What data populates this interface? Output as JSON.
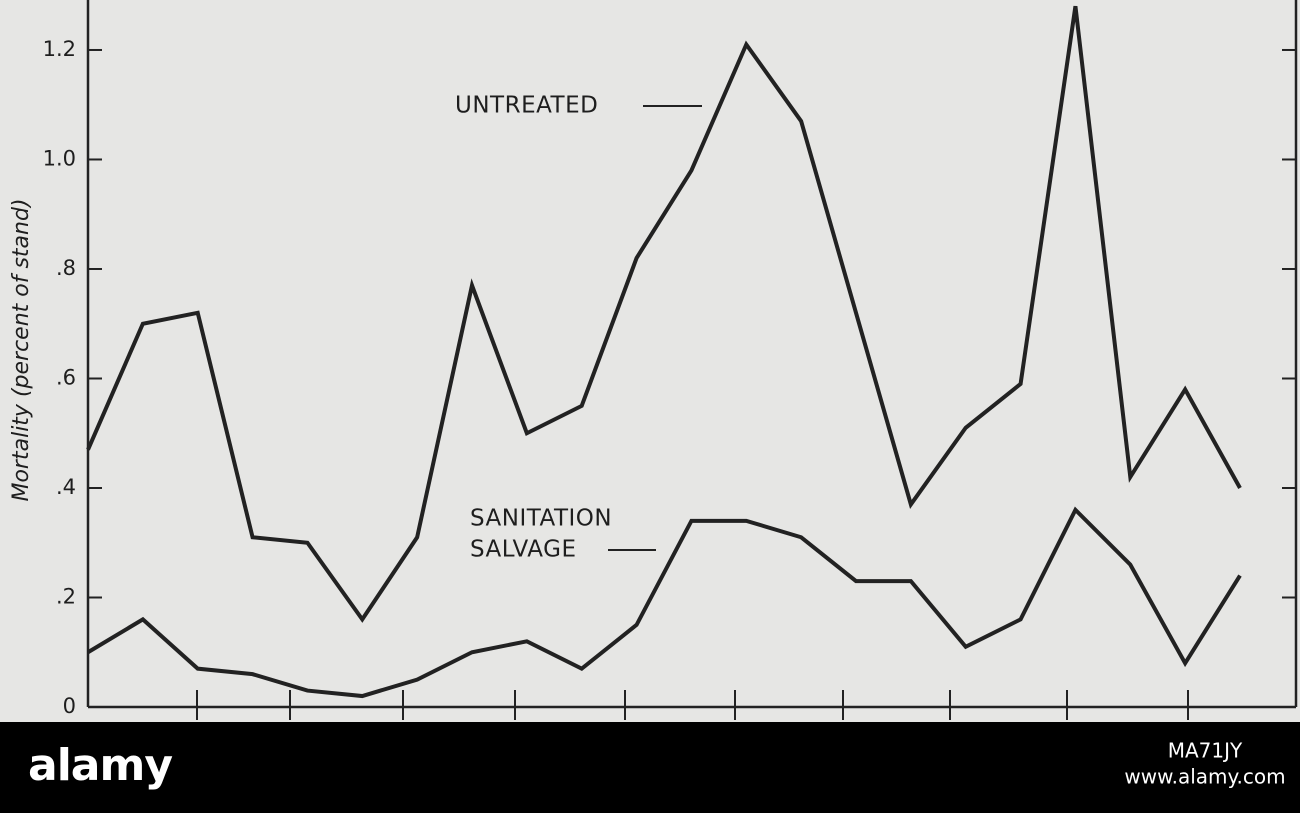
{
  "chart_data": {
    "type": "line",
    "y_label": "Mortality (percent of stand)",
    "annotations": [
      "UNTREATED",
      "SANITATION",
      "SALVAGE"
    ],
    "categories": [
      null,
      null,
      null,
      null,
      null,
      null,
      null,
      null,
      null,
      null,
      null,
      null,
      null,
      null,
      null,
      null,
      null,
      null,
      null,
      null,
      null,
      null
    ],
    "series": [
      {
        "name": "UNTREATED",
        "color": "#222222",
        "values": [
          0.47,
          0.7,
          0.72,
          0.31,
          0.3,
          0.16,
          0.31,
          0.77,
          0.5,
          0.55,
          0.82,
          0.98,
          1.21,
          1.07,
          0.72,
          0.37,
          0.51,
          0.59,
          1.28,
          0.42,
          0.58,
          0.4
        ]
      },
      {
        "name": "SANITATION SALVAGE",
        "color": "#222222",
        "values": [
          0.1,
          0.16,
          0.07,
          0.06,
          0.03,
          0.02,
          0.05,
          0.1,
          0.12,
          0.07,
          0.15,
          0.34,
          0.34,
          0.31,
          0.23,
          0.23,
          0.11,
          0.16,
          0.36,
          0.26,
          0.08,
          0.24
        ]
      }
    ],
    "ylim": [
      0,
      1.29
    ],
    "yticks": [
      0,
      {
        "value": 0.2,
        "label": ".2"
      },
      {
        "value": 0.4,
        "label": ".4"
      },
      {
        "value": 0.6,
        "label": ".6"
      },
      {
        "value": 0.8,
        "label": ".8"
      },
      {
        "value": 1.0,
        "label": "1.0"
      },
      1.2
    ]
  },
  "watermark": {
    "brand": "alamy",
    "id": "MA71JY",
    "url": "www.alamy.com"
  }
}
